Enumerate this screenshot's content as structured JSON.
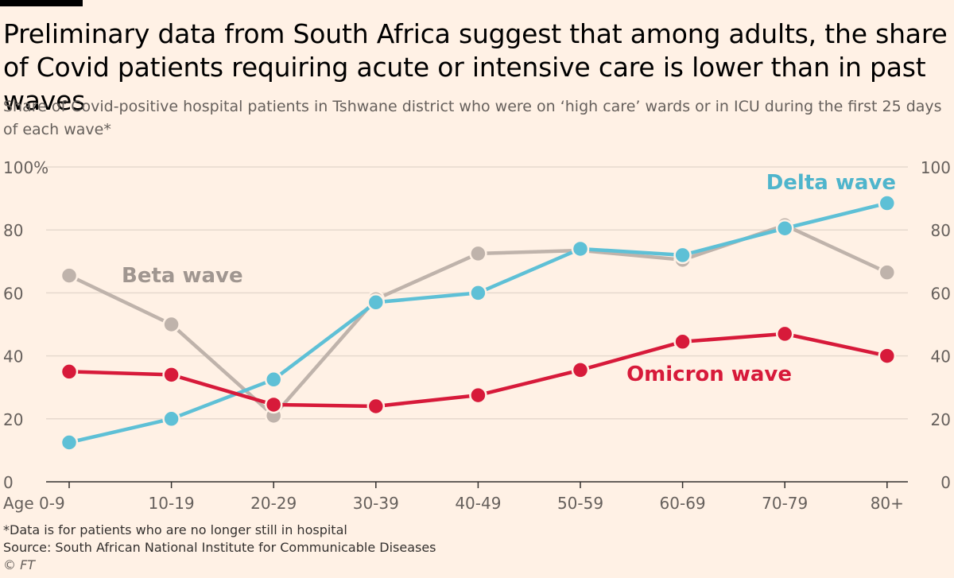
{
  "title": "Preliminary data from South Africa suggest that among adults, the share of Covid patients requiring acute or intensive care is lower than in past waves",
  "subtitle": "Share of Covid-positive hospital patients in Tshwane district who were on ‘high care’ wards or in ICU during the first 25 days of each wave*",
  "footnote": "*Data is for patients who are no longer still in hospital",
  "source": "Source: South African National Institute for Communicable Diseases",
  "copyright": "© FT",
  "colors": {
    "background": "#fff1e5",
    "grid": "#e6d9ce",
    "axis": "#33302e",
    "delta": "#5ec0d6",
    "beta": "#bfb3ab",
    "omicron": "#d71a3a"
  },
  "chart_data": {
    "type": "line",
    "categories": [
      "Age 0-9",
      "10-19",
      "20-29",
      "30-39",
      "40-49",
      "50-59",
      "60-69",
      "70-79",
      "80+"
    ],
    "ylim": [
      0,
      100
    ],
    "yticks_left": [
      "0",
      "20",
      "40",
      "60",
      "80",
      "100%"
    ],
    "yticks_right": [
      "0",
      "20",
      "40",
      "60",
      "80",
      "100"
    ],
    "grid": true,
    "series": [
      {
        "name": "Beta wave",
        "color": "#bfb3ab",
        "values": [
          65.5,
          50,
          21,
          58,
          72.5,
          73.5,
          70.5,
          81.5,
          66.5
        ]
      },
      {
        "name": "Delta wave",
        "color": "#5ec0d6",
        "values": [
          12.5,
          20,
          32.5,
          57,
          60,
          74,
          72,
          80.5,
          88.5
        ]
      },
      {
        "name": "Omicron wave",
        "color": "#d71a3a",
        "values": [
          35,
          34,
          24.5,
          24,
          27.5,
          35.5,
          44.5,
          47,
          40
        ]
      }
    ]
  }
}
